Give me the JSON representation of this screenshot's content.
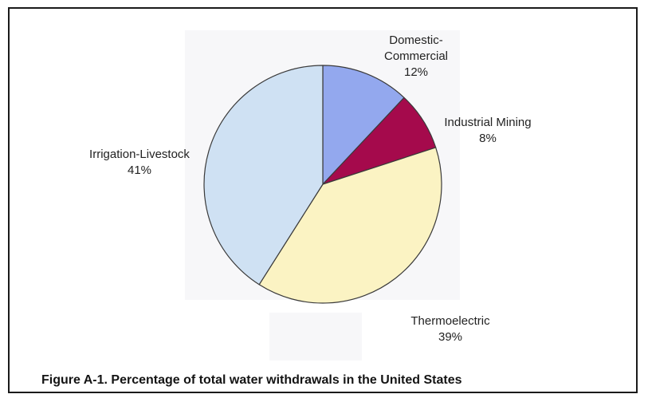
{
  "chart_data": {
    "type": "pie",
    "title": "Figure A-1.  Percentage of total water withdrawals in the United States",
    "slices": [
      {
        "label": "Domestic-Commercial",
        "label_lines": [
          "Domestic-",
          "Commercial"
        ],
        "value": 12,
        "value_label": "12%",
        "color": "#93a8ee"
      },
      {
        "label": "Industrial Mining",
        "label_lines": [
          "Industrial Mining"
        ],
        "value": 8,
        "value_label": "8%",
        "color": "#a50a4c"
      },
      {
        "label": "Thermoelectric",
        "label_lines": [
          "Thermoelectric"
        ],
        "value": 39,
        "value_label": "39%",
        "color": "#fbf3c3"
      },
      {
        "label": "Irrigation-Livestock",
        "label_lines": [
          "Irrigation-Livestock"
        ],
        "value": 41,
        "value_label": "41%",
        "color": "#cfe1f3"
      }
    ],
    "start": "12 o'clock",
    "direction": "clockwise",
    "legend": "none"
  }
}
